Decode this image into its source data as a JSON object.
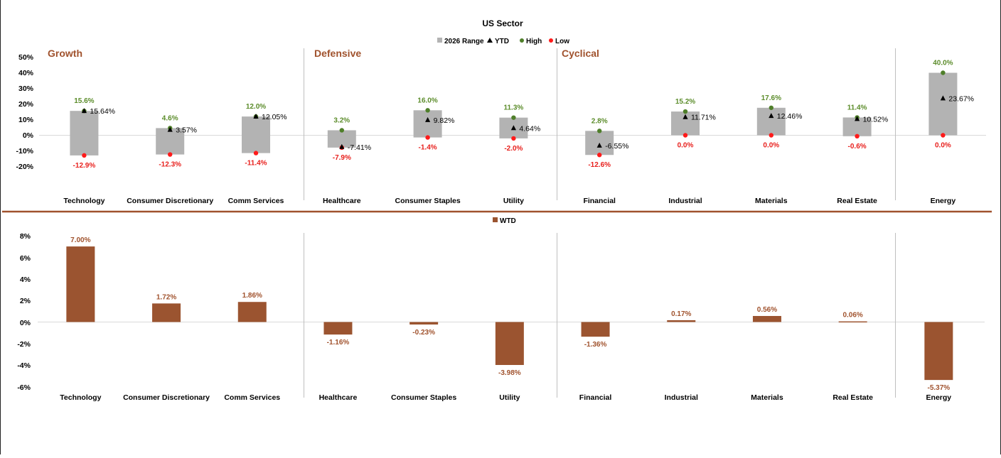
{
  "range_chart": {
    "title": "US Sector",
    "legend": [
      {
        "label": "2026 Range",
        "marker": "square",
        "color": "#b3b3b3"
      },
      {
        "label": "YTD",
        "marker": "triangle",
        "color": "#000000"
      },
      {
        "label": "High",
        "marker": "dot",
        "color": "#4f7f2a"
      },
      {
        "label": "Low",
        "marker": "dot",
        "color": "#ff1a1a"
      }
    ],
    "groups": [
      "Growth",
      "Defensive",
      "Cyclical"
    ],
    "y_ticks": [
      "50%",
      "40%",
      "30%",
      "20%",
      "10%",
      "0%",
      "-10%",
      "-20%"
    ]
  },
  "wtd_chart": {
    "legend": [
      {
        "label": "WTD",
        "marker": "square",
        "color": "#9b5430"
      }
    ],
    "y_ticks": [
      "8%",
      "6%",
      "4%",
      "2%",
      "0%",
      "-2%",
      "-4%",
      "-6%"
    ]
  },
  "colors": {
    "range": "#b3b3b3",
    "high": "#4f7f2a",
    "low": "#ff1a1a",
    "wtd": "#9b5430",
    "group": "#a0522d",
    "separator": "#a0522d"
  },
  "chart_data": [
    {
      "type": "bar",
      "title": "US Sector",
      "categories": [
        "Technology",
        "Consumer Discretionary",
        "Comm Services",
        "Healthcare",
        "Consumer Staples",
        "Utility",
        "Financial",
        "Industrial",
        "Materials",
        "Real Estate",
        "Energy"
      ],
      "ylim": [
        -20,
        50
      ],
      "series": [
        {
          "name": "High",
          "values": [
            15.6,
            4.6,
            12.0,
            3.2,
            16.0,
            11.3,
            2.8,
            15.2,
            17.6,
            11.4,
            40.0
          ],
          "labels": [
            "15.6%",
            "4.6%",
            "12.0%",
            "3.2%",
            "16.0%",
            "11.3%",
            "2.8%",
            "15.2%",
            "17.6%",
            "11.4%",
            "40.0%"
          ]
        },
        {
          "name": "Low",
          "values": [
            -12.9,
            -12.3,
            -11.4,
            -7.9,
            -1.4,
            -2.0,
            -12.6,
            0.0,
            0.0,
            -0.6,
            0.0
          ],
          "labels": [
            "-12.9%",
            "-12.3%",
            "-11.4%",
            "-7.9%",
            "-1.4%",
            "-2.0%",
            "-12.6%",
            "0.0%",
            "0.0%",
            "-0.6%",
            "0.0%"
          ]
        },
        {
          "name": "YTD",
          "values": [
            15.64,
            3.57,
            12.05,
            -7.41,
            9.82,
            4.64,
            -6.55,
            11.71,
            12.46,
            10.52,
            23.67
          ],
          "labels": [
            "15.64%",
            "3.57%",
            "12.05%",
            "-7.41%",
            "9.82%",
            "4.64%",
            "-6.55%",
            "11.71%",
            "12.46%",
            "10.52%",
            "23.67%"
          ]
        }
      ]
    },
    {
      "type": "bar",
      "categories": [
        "Technology",
        "Consumer Discretionary",
        "Comm Services",
        "Healthcare",
        "Consumer Staples",
        "Utility",
        "Financial",
        "Industrial",
        "Materials",
        "Real Estate",
        "Energy"
      ],
      "ylim": [
        -6,
        8
      ],
      "series": [
        {
          "name": "WTD",
          "values": [
            7.0,
            1.72,
            1.86,
            -1.16,
            -0.23,
            -3.98,
            -1.36,
            0.17,
            0.56,
            0.06,
            -5.37
          ],
          "labels": [
            "7.00%",
            "1.72%",
            "1.86%",
            "-1.16%",
            "-0.23%",
            "-3.98%",
            "-1.36%",
            "0.17%",
            "0.56%",
            "0.06%",
            "-5.37%"
          ]
        }
      ]
    }
  ]
}
